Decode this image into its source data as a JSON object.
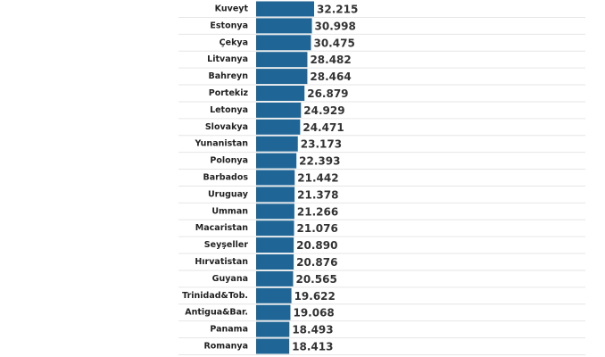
{
  "chart_data": {
    "type": "bar",
    "orientation": "horizontal",
    "color": "#1f6696",
    "categories": [
      "Kuveyt",
      "Estonya",
      "Çekya",
      "Litvanya",
      "Bahreyn",
      "Portekiz",
      "Letonya",
      "Slovakya",
      "Yunanistan",
      "Polonya",
      "Barbados",
      "Uruguay",
      "Umman",
      "Macaristan",
      "Seyşeller",
      "Hırvatistan",
      "Guyana",
      "Trinidad&Tob.",
      "Antigua&Bar.",
      "Panama",
      "Romanya"
    ],
    "values": [
      32215,
      30998,
      30475,
      28482,
      28464,
      26879,
      24929,
      24471,
      23173,
      22393,
      21442,
      21378,
      21266,
      21076,
      20890,
      20876,
      20565,
      19622,
      19068,
      18493,
      18413
    ],
    "value_labels": [
      "32.215",
      "30.998",
      "30.475",
      "28.482",
      "28.464",
      "26.879",
      "24.929",
      "24.471",
      "23.173",
      "22.393",
      "21.442",
      "21.378",
      "21.266",
      "21.076",
      "20.890",
      "20.876",
      "20.565",
      "19.622",
      "19.068",
      "18.493",
      "18.413"
    ]
  }
}
